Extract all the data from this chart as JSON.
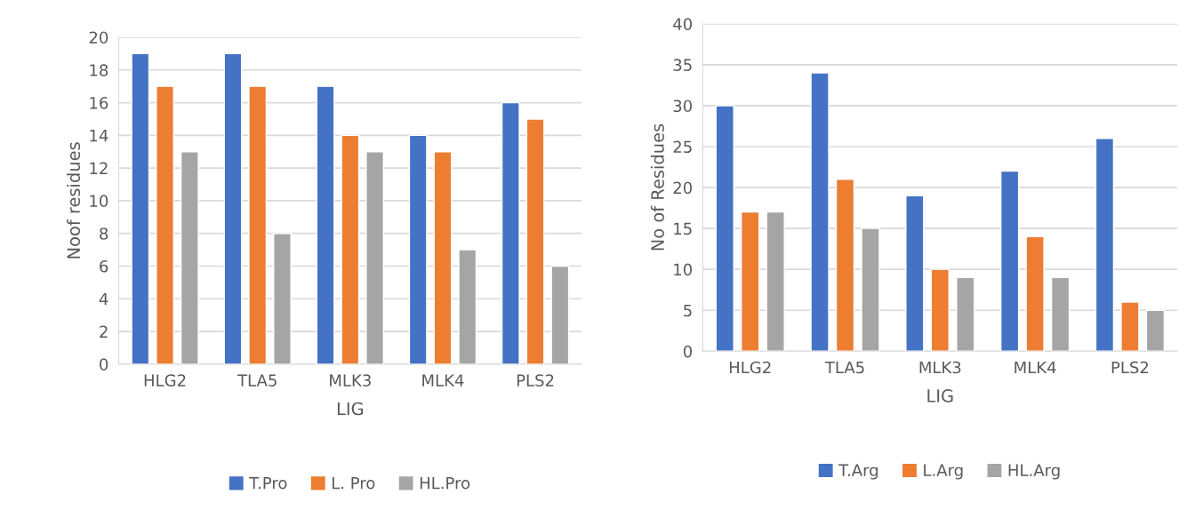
{
  "chart_data": [
    {
      "type": "bar",
      "xlabel": "LIG",
      "ylabel": "Noof residues",
      "categories": [
        "HLG2",
        "TLA5",
        "MLK3",
        "MLK4",
        "PLS2"
      ],
      "series": [
        {
          "name": "T.Pro",
          "color": "#4472c4",
          "values": [
            19,
            19,
            17,
            14,
            16
          ]
        },
        {
          "name": "L. Pro",
          "color": "#ed7d31",
          "values": [
            17,
            17,
            14,
            13,
            15
          ]
        },
        {
          "name": "HL.Pro",
          "color": "#a5a5a5",
          "values": [
            13,
            8,
            13,
            7,
            6
          ]
        }
      ],
      "ylim": [
        0,
        20
      ],
      "yticks": [
        0,
        2,
        4,
        6,
        8,
        10,
        12,
        14,
        16,
        18,
        20
      ],
      "grid": "y",
      "legend": "bottom"
    },
    {
      "type": "bar",
      "xlabel": "LIG",
      "ylabel": "No of Residues",
      "categories": [
        "HLG2",
        "TLA5",
        "MLK3",
        "MLK4",
        "PLS2"
      ],
      "series": [
        {
          "name": "T.Arg",
          "color": "#4472c4",
          "values": [
            30,
            34,
            19,
            22,
            26
          ]
        },
        {
          "name": "L.Arg",
          "color": "#ed7d31",
          "values": [
            17,
            21,
            10,
            14,
            6
          ]
        },
        {
          "name": "HL.Arg",
          "color": "#a5a5a5",
          "values": [
            17,
            15,
            9,
            9,
            5
          ]
        }
      ],
      "ylim": [
        0,
        40
      ],
      "yticks": [
        0,
        5,
        10,
        15,
        20,
        25,
        30,
        35,
        40
      ],
      "grid": "y",
      "legend": "bottom"
    }
  ]
}
